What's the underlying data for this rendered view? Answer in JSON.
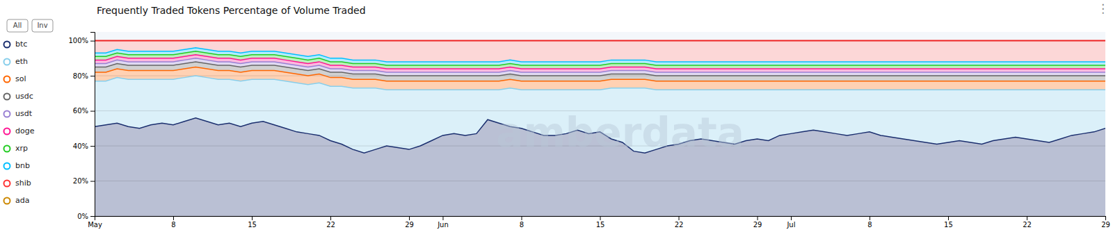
{
  "chart_data": {
    "type": "area",
    "stacked": true,
    "title": "Frequently Traded Tokens Percentage of Volume Traded",
    "annotations": [
      "amberdata",
      "All",
      "Inv",
      "⋮"
    ],
    "legend": "left",
    "grid": true,
    "categories": [
      "May",
      null,
      null,
      null,
      null,
      null,
      null,
      "8",
      null,
      null,
      null,
      null,
      null,
      null,
      "15",
      null,
      null,
      null,
      null,
      null,
      null,
      "22",
      null,
      null,
      null,
      null,
      null,
      null,
      "29",
      null,
      null,
      "Jun",
      null,
      null,
      null,
      null,
      null,
      null,
      "8",
      null,
      null,
      null,
      null,
      null,
      null,
      "15",
      null,
      null,
      null,
      null,
      null,
      null,
      "22",
      null,
      null,
      null,
      null,
      null,
      null,
      "29",
      null,
      null,
      "Jul",
      null,
      null,
      null,
      null,
      null,
      null,
      "8",
      null,
      null,
      null,
      null,
      null,
      null,
      "15",
      null,
      null,
      null,
      null,
      null,
      null,
      "22",
      null,
      null,
      null,
      null,
      null,
      null,
      "29"
    ],
    "ylim": [
      0,
      105
    ],
    "yticks": [
      {
        "value": 0,
        "label": "0%"
      },
      {
        "value": 20,
        "label": "20%"
      },
      {
        "value": 40,
        "label": "40%"
      },
      {
        "value": 60,
        "label": "60%"
      },
      {
        "value": 80,
        "label": "80%"
      },
      {
        "value": 100,
        "label": "100%"
      }
    ],
    "series": [
      {
        "name": "btc",
        "color": "#1a2e6e",
        "values": [
          51,
          52,
          53,
          51,
          50,
          52,
          53,
          52,
          54,
          56,
          54,
          52,
          53,
          51,
          53,
          54,
          52,
          50,
          48,
          47,
          46,
          43,
          41,
          38,
          36,
          38,
          40,
          39,
          38,
          40,
          43,
          46,
          47,
          46,
          47,
          55,
          53,
          51,
          50,
          48,
          46,
          46,
          47,
          49,
          47,
          48,
          44,
          42,
          37,
          36,
          38,
          40,
          41,
          43,
          44,
          43,
          42,
          41,
          43,
          44,
          43,
          46,
          47,
          48,
          49,
          48,
          47,
          46,
          47,
          48,
          46,
          45,
          44,
          43,
          42,
          41,
          42,
          43,
          42,
          41,
          43,
          44,
          45,
          44,
          43,
          42,
          44,
          46,
          47,
          48,
          50
        ]
      },
      {
        "name": "eth",
        "color": "#87ceeb",
        "values": [
          26,
          25,
          26,
          27,
          28,
          26,
          25,
          26,
          25,
          24,
          25,
          26,
          25,
          26,
          25,
          24,
          26,
          27,
          28,
          28,
          30,
          31,
          33,
          35,
          37,
          35,
          32,
          33,
          34,
          32,
          29,
          26,
          25,
          26,
          25,
          17,
          19,
          22,
          22,
          24,
          26,
          26,
          25,
          23,
          25,
          24,
          29,
          31,
          36,
          37,
          34,
          32,
          31,
          29,
          28,
          29,
          30,
          31,
          29,
          28,
          29,
          26,
          25,
          24,
          23,
          24,
          25,
          26,
          25,
          24,
          26,
          27,
          28,
          29,
          30,
          31,
          30,
          29,
          30,
          31,
          29,
          28,
          27,
          28,
          29,
          30,
          28,
          26,
          25,
          24,
          22
        ]
      },
      {
        "name": "sol",
        "color": "#ff6600",
        "values": [
          5,
          5,
          5,
          5,
          5,
          5,
          5,
          5,
          5,
          5,
          5,
          5,
          5,
          5,
          5,
          5,
          5,
          5,
          5,
          5,
          5,
          5,
          5,
          5,
          5,
          5,
          5,
          5,
          5,
          5,
          5,
          5,
          5,
          5,
          5,
          5,
          5,
          5,
          5,
          5,
          5,
          5,
          5,
          5,
          5,
          5,
          5,
          5,
          5,
          5,
          5,
          5,
          5,
          5,
          5,
          5,
          5,
          5,
          5,
          5,
          5,
          5,
          5,
          5,
          5,
          5,
          5,
          5,
          5,
          5,
          5,
          5,
          5,
          5,
          5,
          5,
          5,
          5,
          5,
          5,
          5,
          5,
          5,
          5,
          5,
          5,
          5,
          5,
          5,
          5,
          5
        ]
      },
      {
        "name": "usdc",
        "color": "#666666",
        "values": [
          3,
          3,
          3,
          3,
          3,
          3,
          3,
          3,
          3,
          3,
          3,
          3,
          3,
          3,
          3,
          3,
          3,
          3,
          3,
          3,
          3,
          3,
          3,
          3,
          3,
          3,
          3,
          3,
          3,
          3,
          3,
          3,
          3,
          3,
          3,
          3,
          3,
          3,
          3,
          3,
          3,
          3,
          3,
          3,
          3,
          3,
          3,
          3,
          3,
          3,
          3,
          3,
          3,
          3,
          3,
          3,
          3,
          3,
          3,
          3,
          3,
          3,
          3,
          3,
          3,
          3,
          3,
          3,
          3,
          3,
          3,
          3,
          3,
          3,
          3,
          3,
          3,
          3,
          3,
          3,
          3,
          3,
          3,
          3,
          3,
          3,
          3,
          3,
          3,
          3,
          3
        ]
      },
      {
        "name": "usdt",
        "color": "#9980d4",
        "values": [
          2,
          2,
          2,
          2,
          2,
          2,
          2,
          2,
          2,
          2,
          2,
          2,
          2,
          2,
          2,
          2,
          2,
          2,
          2,
          2,
          2,
          2,
          2,
          2,
          2,
          2,
          2,
          2,
          2,
          2,
          2,
          2,
          2,
          2,
          2,
          2,
          2,
          2,
          2,
          2,
          2,
          2,
          2,
          2,
          2,
          2,
          2,
          2,
          2,
          2,
          2,
          2,
          2,
          2,
          2,
          2,
          2,
          2,
          2,
          2,
          2,
          2,
          2,
          2,
          2,
          2,
          2,
          2,
          2,
          2,
          2,
          2,
          2,
          2,
          2,
          2,
          2,
          2,
          2,
          2,
          2,
          2,
          2,
          2,
          2,
          2,
          2,
          2,
          2,
          2,
          2
        ]
      },
      {
        "name": "doge",
        "color": "#ff1493",
        "values": [
          2,
          2,
          2,
          2,
          2,
          2,
          2,
          2,
          2,
          2,
          2,
          2,
          2,
          2,
          2,
          2,
          2,
          2,
          2,
          2,
          2,
          2,
          2,
          2,
          2,
          2,
          2,
          2,
          2,
          2,
          2,
          2,
          2,
          2,
          2,
          2,
          2,
          2,
          2,
          2,
          2,
          2,
          2,
          2,
          2,
          2,
          2,
          2,
          2,
          2,
          2,
          2,
          2,
          2,
          2,
          2,
          2,
          2,
          2,
          2,
          2,
          2,
          2,
          2,
          2,
          2,
          2,
          2,
          2,
          2,
          2,
          2,
          2,
          2,
          2,
          2,
          2,
          2,
          2,
          2,
          2,
          2,
          2,
          2,
          2,
          2,
          2,
          2,
          2,
          2,
          2
        ]
      },
      {
        "name": "xrp",
        "color": "#22cc22",
        "values": [
          2,
          2,
          2,
          2,
          2,
          2,
          2,
          2,
          2,
          2,
          2,
          2,
          2,
          2,
          2,
          2,
          2,
          2,
          2,
          2,
          2,
          2,
          2,
          2,
          2,
          2,
          2,
          2,
          2,
          2,
          2,
          2,
          2,
          2,
          2,
          2,
          2,
          2,
          2,
          2,
          2,
          2,
          2,
          2,
          2,
          2,
          2,
          2,
          2,
          2,
          2,
          2,
          2,
          2,
          2,
          2,
          2,
          2,
          2,
          2,
          2,
          2,
          2,
          2,
          2,
          2,
          2,
          2,
          2,
          2,
          2,
          2,
          2,
          2,
          2,
          2,
          2,
          2,
          2,
          2,
          2,
          2,
          2,
          2,
          2,
          2,
          2,
          2,
          2,
          2,
          2
        ]
      },
      {
        "name": "bnb",
        "color": "#00bfff",
        "values": [
          2,
          2,
          2,
          2,
          2,
          2,
          2,
          2,
          2,
          2,
          2,
          2,
          2,
          2,
          2,
          2,
          2,
          2,
          2,
          2,
          2,
          2,
          2,
          2,
          2,
          2,
          2,
          2,
          2,
          2,
          2,
          2,
          2,
          2,
          2,
          2,
          2,
          2,
          2,
          2,
          2,
          2,
          2,
          2,
          2,
          2,
          2,
          2,
          2,
          2,
          2,
          2,
          2,
          2,
          2,
          2,
          2,
          2,
          2,
          2,
          2,
          2,
          2,
          2,
          2,
          2,
          2,
          2,
          2,
          2,
          2,
          2,
          2,
          2,
          2,
          2,
          2,
          2,
          2,
          2,
          2,
          2,
          2,
          2,
          2,
          2,
          2,
          2,
          2,
          2,
          2
        ]
      },
      {
        "name": "shib",
        "color": "#ff3333",
        "values": [
          null,
          null,
          null,
          null,
          null,
          null,
          null,
          null,
          null,
          null,
          null,
          null,
          null,
          null,
          null,
          null,
          null,
          null,
          null,
          null,
          null,
          null,
          null,
          null,
          null,
          null,
          null,
          null,
          null,
          null,
          null,
          null,
          null,
          null,
          null,
          null,
          null,
          null,
          null,
          null,
          null,
          null,
          null,
          null,
          null,
          null,
          null,
          null,
          null,
          null,
          null,
          null,
          null,
          null,
          null,
          null,
          null,
          null,
          null,
          null,
          null,
          null,
          null,
          null,
          null,
          null,
          null,
          null,
          null,
          null,
          null,
          null,
          null,
          null,
          null,
          null,
          null,
          null,
          null,
          null,
          null,
          null,
          null,
          null,
          null,
          null,
          null,
          null,
          null,
          null,
          null
        ]
      },
      {
        "name": "ada",
        "color": "#cc8800",
        "values": [
          null,
          null,
          null,
          null,
          null,
          null,
          null,
          null,
          null,
          null,
          null,
          null,
          null,
          null,
          null,
          null,
          null,
          null,
          null,
          null,
          null,
          null,
          null,
          null,
          null,
          null,
          null,
          null,
          null,
          null,
          null,
          null,
          null,
          null,
          null,
          null,
          null,
          null,
          null,
          null,
          null,
          null,
          null,
          null,
          null,
          null,
          null,
          null,
          null,
          null,
          null,
          null,
          null,
          null,
          null,
          null,
          null,
          null,
          null,
          null,
          null,
          null,
          null,
          null,
          null,
          null,
          null,
          null,
          null,
          null,
          null,
          null,
          null,
          null,
          null,
          null,
          null,
          null,
          null,
          null,
          null,
          null,
          null,
          null,
          null,
          null,
          null,
          null,
          null,
          null,
          null
        ]
      },
      {
        "type": "line",
        "color": "#ee2222",
        "values": [
          100,
          100,
          100,
          100,
          100,
          100,
          100,
          100,
          100,
          100,
          100,
          100,
          100,
          100,
          100,
          100,
          100,
          100,
          100,
          100,
          100,
          100,
          100,
          100,
          100,
          100,
          100,
          100,
          100,
          100,
          100,
          100,
          100,
          100,
          100,
          100,
          100,
          100,
          100,
          100,
          100,
          100,
          100,
          100,
          100,
          100,
          100,
          100,
          100,
          100,
          100,
          100,
          100,
          100,
          100,
          100,
          100,
          100,
          100,
          100,
          100,
          100,
          100,
          100,
          100,
          100,
          100,
          100,
          100,
          100,
          100,
          100,
          100,
          100,
          100,
          100,
          100,
          100,
          100,
          100,
          100,
          100,
          100,
          100,
          100,
          100,
          100,
          100,
          100,
          100,
          100
        ]
      }
    ]
  }
}
